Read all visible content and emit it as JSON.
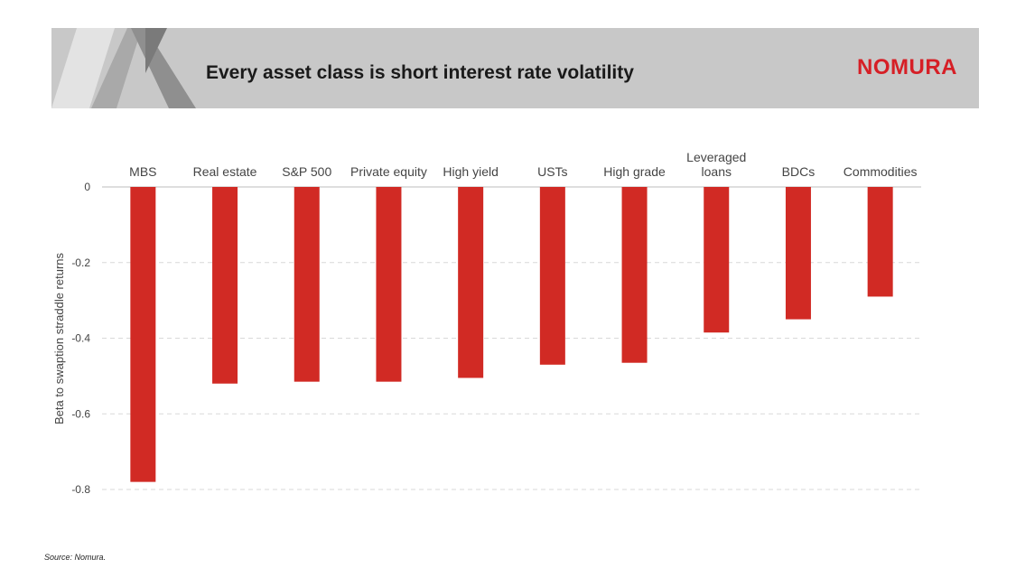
{
  "slide": {
    "title": "Every asset class is short interest rate volatility",
    "logo": "NOMURA",
    "source": "Source: Nomura."
  },
  "colors": {
    "bar": "#d12a24",
    "header_bg": "#c8c8c8",
    "logo": "#d61f26",
    "grid": "#d9d9d9"
  },
  "chart_data": {
    "type": "bar",
    "title": "",
    "xlabel": "",
    "ylabel": "Beta to swaption straddle returns",
    "categories": [
      [
        "MBS"
      ],
      [
        "Real estate"
      ],
      [
        "S&P 500"
      ],
      [
        "Private equity"
      ],
      [
        "High yield"
      ],
      [
        "USTs"
      ],
      [
        "High grade"
      ],
      [
        "Leveraged",
        "loans"
      ],
      [
        "BDCs"
      ],
      [
        "Commodities"
      ]
    ],
    "values": [
      -0.78,
      -0.52,
      -0.515,
      -0.515,
      -0.505,
      -0.47,
      -0.465,
      -0.385,
      -0.35,
      -0.29
    ],
    "ylim": [
      -0.8,
      0
    ],
    "yticks": [
      0,
      -0.2,
      -0.4,
      -0.6,
      -0.8
    ],
    "ytick_labels": [
      "0",
      "-0.2",
      "-0.4",
      "-0.6",
      "-0.8"
    ],
    "grid": true,
    "category_labels_position": "top"
  }
}
